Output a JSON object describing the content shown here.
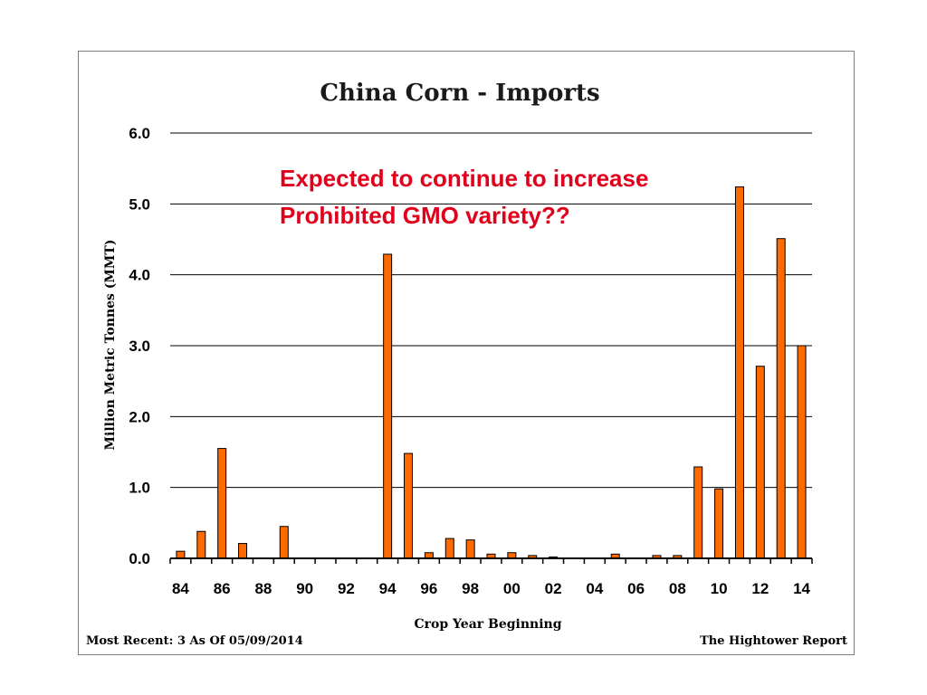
{
  "chart_data": {
    "type": "bar",
    "title": "China Corn - Imports",
    "xlabel": "Crop Year Beginning",
    "ylabel": "Million Metric Tonnes (MMT)",
    "ylim": [
      0,
      6
    ],
    "yticks": [
      "0.0",
      "1.0",
      "2.0",
      "3.0",
      "4.0",
      "5.0",
      "6.0"
    ],
    "xticklabels": [
      "84",
      "86",
      "88",
      "90",
      "92",
      "94",
      "96",
      "98",
      "00",
      "02",
      "04",
      "06",
      "08",
      "10",
      "12",
      "14"
    ],
    "grid": true,
    "categories": [
      "84",
      "85",
      "86",
      "87",
      "88",
      "89",
      "90",
      "91",
      "92",
      "93",
      "94",
      "95",
      "96",
      "97",
      "98",
      "99",
      "00",
      "01",
      "02",
      "03",
      "04",
      "05",
      "06",
      "07",
      "08",
      "09",
      "10",
      "11",
      "12",
      "13",
      "14"
    ],
    "values": [
      0.1,
      0.38,
      1.55,
      0.21,
      0.0,
      0.45,
      0.0,
      0.0,
      0.0,
      0.0,
      4.29,
      1.48,
      0.08,
      0.28,
      0.26,
      0.06,
      0.08,
      0.04,
      0.02,
      0.0,
      0.0,
      0.06,
      0.0,
      0.04,
      0.04,
      1.29,
      0.98,
      5.24,
      2.71,
      4.51,
      3.0
    ],
    "bar_color": "#ff6a00",
    "annotations": [
      "Expected to continue to increase",
      "Prohibited GMO variety??"
    ],
    "annotation_color": "#e0001b"
  },
  "footer": {
    "left": "Most Recent: 3 As Of 05/09/2014",
    "right": "The Hightower Report"
  }
}
